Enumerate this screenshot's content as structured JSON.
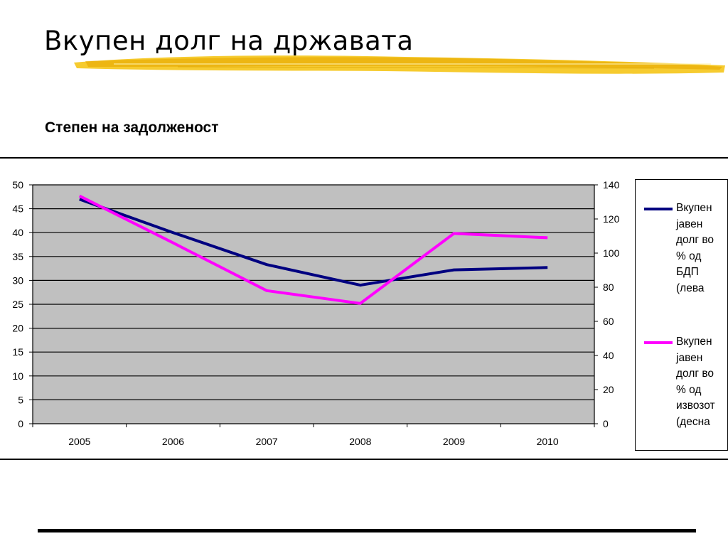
{
  "slide": {
    "title": "Вкупен долг на државата",
    "subtitle": "Степен на задолженост"
  },
  "colors": {
    "brush": "#f5c518",
    "plot_bg": "#c0c0c0",
    "series_left": "#000080",
    "series_right": "#ff00ff"
  },
  "chart_data": {
    "type": "line",
    "categories": [
      "2005",
      "2006",
      "2007",
      "2008",
      "2009",
      "2010"
    ],
    "y_left": {
      "min": 0,
      "max": 50,
      "step": 5,
      "ticks": [
        "0",
        "5",
        "10",
        "15",
        "20",
        "25",
        "30",
        "35",
        "40",
        "45",
        "50"
      ]
    },
    "y_right": {
      "min": 0,
      "max": 140,
      "step": 20,
      "ticks": [
        "0",
        "20",
        "40",
        "60",
        "80",
        "100",
        "120",
        "140"
      ]
    },
    "grid": true,
    "legend_position": "right",
    "series": [
      {
        "name": "Вкупен јавен долг во % од БДП (лева",
        "axis": "left",
        "color": "#000080",
        "values": [
          47.0,
          40.0,
          33.3,
          29.0,
          32.2,
          32.7
        ]
      },
      {
        "name": "Вкупен јавен долг во % од извозот (десна",
        "axis": "right",
        "color": "#ff00ff",
        "values": [
          133.5,
          106.0,
          78.0,
          70.5,
          111.5,
          109.0
        ]
      }
    ]
  },
  "legend": {
    "items": [
      {
        "label": "Вкупен\nјавен\nдолг во\n% од\nБДП\n(лева",
        "color": "#000080"
      },
      {
        "label": "Вкупен\nјавен\nдолг во\n% од\nизвозот\n(десна",
        "color": "#ff00ff"
      }
    ]
  }
}
